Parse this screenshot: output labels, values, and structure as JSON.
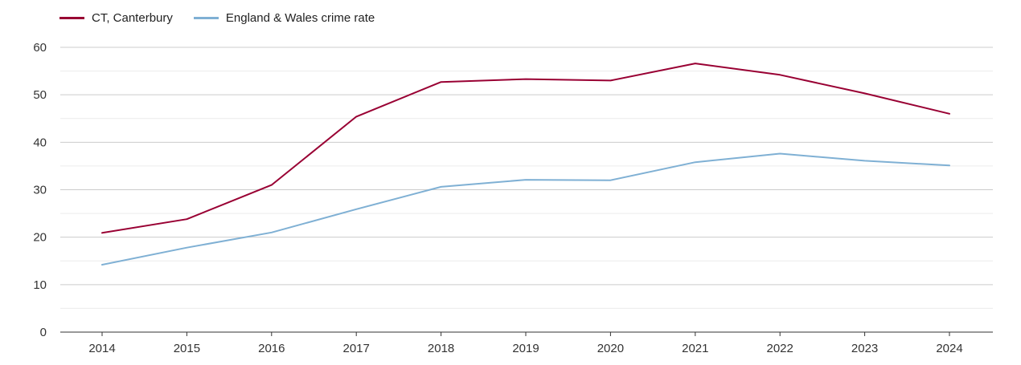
{
  "chart_data": {
    "type": "line",
    "categories": [
      "2014",
      "2015",
      "2016",
      "2017",
      "2018",
      "2019",
      "2020",
      "2021",
      "2022",
      "2023",
      "2024"
    ],
    "series": [
      {
        "name": "CT, Canterbury",
        "color": "#990033",
        "values": [
          20.9,
          23.8,
          31.0,
          45.4,
          52.7,
          53.3,
          53.0,
          56.6,
          54.2,
          50.3,
          46.0
        ]
      },
      {
        "name": "England & Wales crime rate",
        "color": "#7fb0d4",
        "values": [
          14.2,
          17.8,
          21.0,
          25.9,
          30.6,
          32.1,
          32.0,
          35.8,
          37.6,
          36.1,
          35.1
        ]
      }
    ],
    "ylim": [
      0,
      60
    ],
    "yticks": [
      0,
      10,
      20,
      30,
      40,
      50,
      60
    ],
    "title": "",
    "xlabel": "",
    "ylabel": "",
    "grid": true,
    "legend_position": "top-left"
  }
}
